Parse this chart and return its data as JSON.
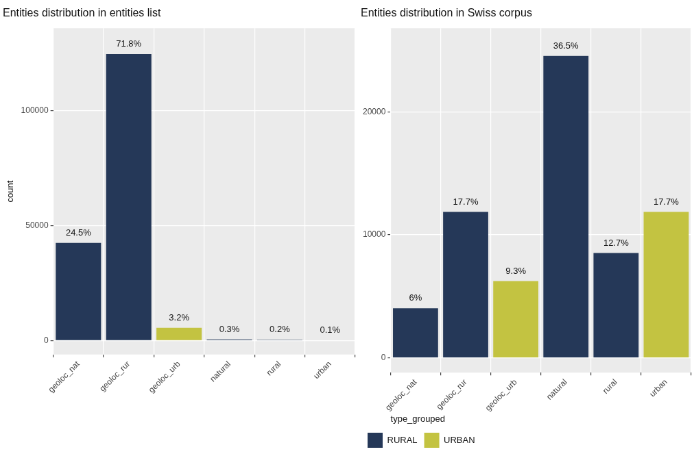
{
  "chart_data": [
    {
      "type": "bar",
      "title": "Entities distribution in entities list",
      "ylabel": "count",
      "categories": [
        "geoloc_nat",
        "geoloc_rur",
        "geoloc_urb",
        "natural",
        "rural",
        "urban"
      ],
      "stacked": true,
      "ylim": [
        -6100,
        136000
      ],
      "yticks": [
        0,
        50000,
        100000
      ],
      "grid": true,
      "series": [
        {
          "color": "#253858",
          "values": [
            42550,
            124700,
            null,
            520,
            350,
            null
          ]
        },
        {
          "color": "#c3c341",
          "values": [
            null,
            null,
            5560,
            null,
            null,
            170
          ]
        }
      ],
      "annotations": [
        {
          "text": "24.5%",
          "x": "geoloc_nat",
          "y": 42550
        },
        {
          "text": "71.8%",
          "x": "geoloc_rur",
          "y": 124700
        },
        {
          "text": "3.2%",
          "x": "geoloc_urb",
          "y": 5560
        },
        {
          "text": "0.3%",
          "x": "natural",
          "y": 520
        },
        {
          "text": "0.2%",
          "x": "rural",
          "y": 350
        },
        {
          "text": "0.1%",
          "x": "urban",
          "y": 170
        }
      ]
    },
    {
      "type": "bar",
      "title": "Entities distribution in Swiss corpus",
      "categories": [
        "geoloc_nat",
        "geoloc_rur",
        "geoloc_urb",
        "natural",
        "rural",
        "urban"
      ],
      "stacked": true,
      "ylim": [
        -1200,
        26800
      ],
      "yticks": [
        0,
        10000,
        20000
      ],
      "grid": true,
      "legend": "bottom",
      "legend_title": "type_grouped",
      "series": [
        {
          "name": "RURAL",
          "color": "#253858",
          "values": [
            4030,
            11860,
            null,
            24540,
            8530,
            null
          ]
        },
        {
          "name": "URBAN",
          "color": "#c3c341",
          "values": [
            null,
            null,
            6240,
            null,
            null,
            11860
          ]
        }
      ],
      "annotations": [
        {
          "text": "6%",
          "x": "geoloc_nat",
          "y": 4030
        },
        {
          "text": "17.7%",
          "x": "geoloc_rur",
          "y": 11860
        },
        {
          "text": "9.3%",
          "x": "geoloc_urb",
          "y": 6240
        },
        {
          "text": "36.5%",
          "x": "natural",
          "y": 24540
        },
        {
          "text": "12.7%",
          "x": "rural",
          "y": 8530
        },
        {
          "text": "17.7%",
          "x": "urban",
          "y": 11860
        }
      ]
    }
  ]
}
